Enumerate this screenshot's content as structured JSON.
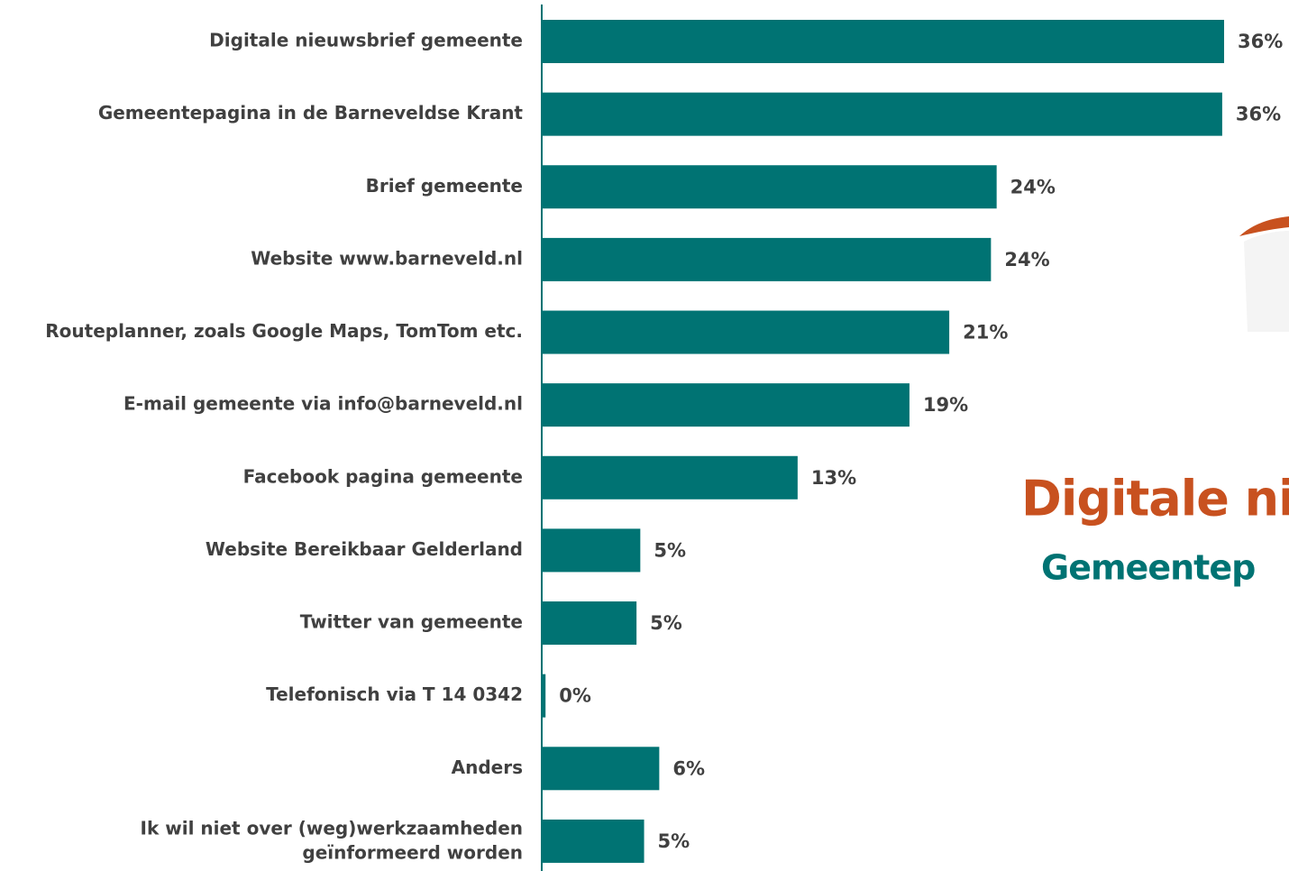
{
  "chart_data": {
    "type": "hbar",
    "categories": [
      "Digitale nieuwsbrief gemeente",
      "Gemeentepagina in de Barneveldse Krant",
      "Brief gemeente",
      "Website www.barneveld.nl",
      "Routeplanner, zoals Google Maps, TomTom etc.",
      "E-mail gemeente via info@barneveld.nl",
      "Facebook pagina gemeente",
      "Website Bereikbaar Gelderland",
      "Twitter van gemeente",
      "Telefonisch via T 14 0342",
      "Anders",
      [
        "Ik wil niet over (weg)werkzaamheden",
        "geïnformeerd worden"
      ]
    ],
    "values": [
      36.0,
      35.9,
      24.0,
      23.7,
      21.5,
      19.4,
      13.5,
      5.2,
      5.0,
      0.2,
      6.2,
      5.4
    ],
    "value_labels": [
      "36%",
      "36%",
      "24%",
      "24%",
      "21%",
      "19%",
      "13%",
      "5%",
      "5%",
      "0%",
      "6%",
      "5%"
    ],
    "color": "#007373",
    "xlim": [
      0,
      36
    ],
    "annotations": [
      "Digitale ni",
      "Gemeentep"
    ]
  }
}
